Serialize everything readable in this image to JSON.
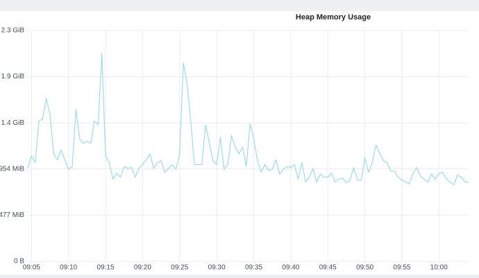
{
  "chart_data": {
    "type": "line",
    "title": "Heap Memory Usage",
    "color": "#9fdbe0",
    "grid": true,
    "categories": [
      null,
      "09:05",
      null,
      null,
      null,
      null,
      null,
      null,
      null,
      null,
      null,
      "09:10",
      null,
      null,
      null,
      null,
      null,
      null,
      null,
      null,
      null,
      "09:15",
      null,
      null,
      null,
      null,
      null,
      null,
      null,
      null,
      null,
      "09:20",
      null,
      null,
      null,
      null,
      null,
      null,
      null,
      null,
      null,
      "09:25",
      null,
      null,
      null,
      null,
      null,
      null,
      null,
      null,
      null,
      "09:30",
      null,
      null,
      null,
      null,
      null,
      null,
      null,
      null,
      null,
      "09:35",
      null,
      null,
      null,
      null,
      null,
      null,
      null,
      null,
      null,
      "09:40",
      null,
      null,
      null,
      null,
      null,
      null,
      null,
      null,
      null,
      "09:45",
      null,
      null,
      null,
      null,
      null,
      null,
      null,
      null,
      null,
      "09:50",
      null,
      null,
      null,
      null,
      null,
      null,
      null,
      null,
      null,
      "09:55",
      null,
      null,
      null,
      null,
      null,
      null,
      null,
      null,
      null,
      "10:00",
      null,
      null,
      null,
      null,
      null,
      null,
      null,
      null
    ],
    "values": [
      960,
      1090,
      1020,
      1450,
      1470,
      1680,
      1520,
      1110,
      1050,
      1150,
      1050,
      950,
      980,
      1570,
      1270,
      1220,
      1240,
      1220,
      1450,
      1410,
      2150,
      1090,
      1020,
      850,
      910,
      870,
      980,
      960,
      970,
      870,
      960,
      1000,
      1050,
      1110,
      960,
      1020,
      1040,
      920,
      960,
      1000,
      950,
      1110,
      2050,
      1840,
      1450,
      1000,
      1000,
      1000,
      1410,
      1230,
      1040,
      1000,
      1280,
      950,
      1000,
      1300,
      1180,
      1110,
      1180,
      980,
      1420,
      1270,
      1040,
      920,
      1000,
      940,
      950,
      1050,
      900,
      950,
      980,
      970,
      1000,
      850,
      1020,
      820,
      870,
      960,
      820,
      900,
      870,
      870,
      910,
      820,
      850,
      860,
      810,
      840,
      970,
      840,
      840,
      1070,
      920,
      1020,
      1200,
      1120,
      1040,
      1020,
      930,
      930,
      870,
      840,
      820,
      800,
      910,
      970,
      880,
      850,
      820,
      900,
      850,
      910,
      920,
      850,
      820,
      790,
      890,
      870,
      820,
      820
    ],
    "ylim": [
      0,
      2385
    ],
    "yticks": [
      {
        "value": 0,
        "label": "0 B"
      },
      {
        "value": 477,
        "label": "477 MiB"
      },
      {
        "value": 954,
        "label": "954 MiB"
      },
      {
        "value": 1431,
        "label": "1.4 GiB"
      },
      {
        "value": 1908,
        "label": "1.9 GiB"
      },
      {
        "value": 2385,
        "label": "2.3 GiB"
      }
    ]
  }
}
